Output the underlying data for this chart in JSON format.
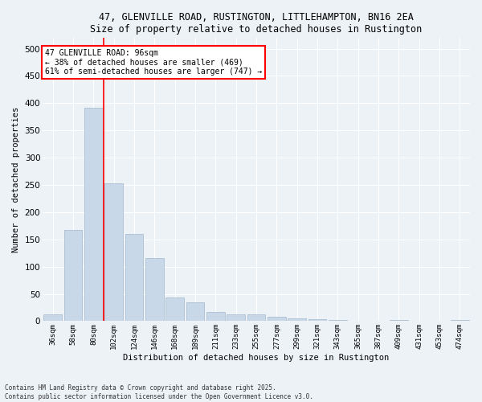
{
  "title1": "47, GLENVILLE ROAD, RUSTINGTON, LITTLEHAMPTON, BN16 2EA",
  "title2": "Size of property relative to detached houses in Rustington",
  "xlabel": "Distribution of detached houses by size in Rustington",
  "ylabel": "Number of detached properties",
  "categories": [
    "36sqm",
    "58sqm",
    "80sqm",
    "102sqm",
    "124sqm",
    "146sqm",
    "168sqm",
    "189sqm",
    "211sqm",
    "233sqm",
    "255sqm",
    "277sqm",
    "299sqm",
    "321sqm",
    "343sqm",
    "365sqm",
    "387sqm",
    "409sqm",
    "431sqm",
    "453sqm",
    "474sqm"
  ],
  "values": [
    12,
    168,
    392,
    253,
    160,
    115,
    44,
    35,
    17,
    13,
    13,
    8,
    5,
    3,
    2,
    0,
    0,
    2,
    0,
    0,
    2
  ],
  "bar_color": "#c8d8e8",
  "bar_edgecolor": "#a0b8cc",
  "vline_x": 2.5,
  "vline_color": "red",
  "annotation_text": "47 GLENVILLE ROAD: 96sqm\n← 38% of detached houses are smaller (469)\n61% of semi-detached houses are larger (747) →",
  "annotation_box_color": "red",
  "annotation_text_color": "black",
  "ylim": [
    0,
    520
  ],
  "yticks": [
    0,
    50,
    100,
    150,
    200,
    250,
    300,
    350,
    400,
    450,
    500
  ],
  "background_color": "#edf2f7",
  "grid_color": "white",
  "footer1": "Contains HM Land Registry data © Crown copyright and database right 2025.",
  "footer2": "Contains public sector information licensed under the Open Government Licence v3.0."
}
